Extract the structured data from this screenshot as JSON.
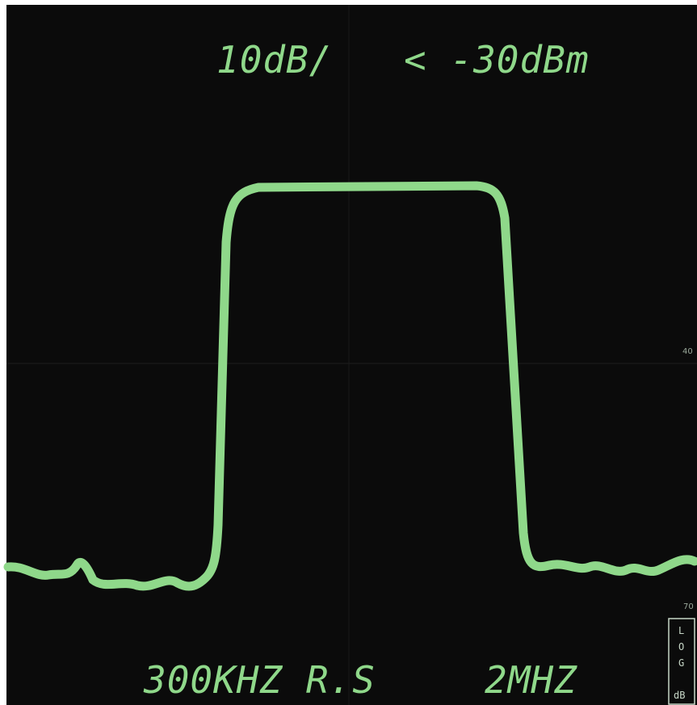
{
  "display": {
    "top_left": "10dB/",
    "top_right": "< -30dBm",
    "bottom_left": "300KHZ R.S",
    "bottom_right": "2MHZ",
    "side_upper": "40",
    "side_lower": "70",
    "log_box": [
      "L",
      "O",
      "G",
      "dB"
    ]
  }
}
